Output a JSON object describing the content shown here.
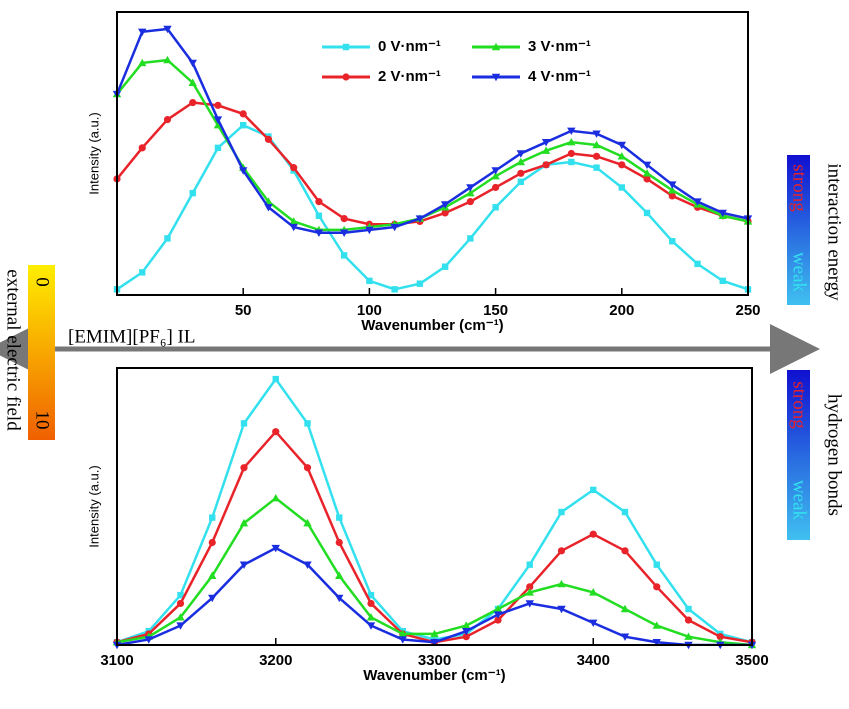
{
  "chart_data": [
    {
      "type": "line",
      "x_label": "Wavenumber (cm⁻¹)",
      "y_label": "Intensity (a.u.)",
      "x": [
        0,
        10,
        20,
        30,
        40,
        50,
        60,
        70,
        80,
        90,
        100,
        110,
        120,
        130,
        140,
        150,
        160,
        170,
        180,
        190,
        200,
        210,
        220,
        230,
        240,
        250
      ],
      "xlim": [
        0,
        250
      ],
      "xticks": [
        50,
        100,
        150,
        200,
        250
      ],
      "ylim": [
        0,
        100
      ],
      "legend": "top",
      "series": [
        {
          "name": "0 V·nm⁻¹",
          "color": "#33e0ee",
          "marker": "square",
          "values": [
            2,
            8,
            20,
            36,
            52,
            60,
            56,
            44,
            28,
            14,
            5,
            2,
            4,
            10,
            20,
            31,
            40,
            46,
            47,
            45,
            38,
            29,
            19,
            11,
            5,
            2
          ]
        },
        {
          "name": "2 V·nm⁻¹",
          "color": "#e8232a",
          "marker": "circle",
          "values": [
            41,
            52,
            62,
            68,
            67,
            64,
            55,
            45,
            33,
            27,
            25,
            25,
            26,
            29,
            33,
            38,
            43,
            46,
            50,
            49,
            46,
            41,
            35,
            31,
            28,
            26
          ]
        },
        {
          "name": "3 V·nm⁻¹",
          "color": "#22dd22",
          "marker": "triangle",
          "values": [
            71,
            82,
            83,
            75,
            60,
            45,
            33,
            26,
            23,
            23,
            24,
            25,
            27,
            31,
            36,
            42,
            47,
            51,
            54,
            53,
            49,
            43,
            37,
            32,
            28,
            26
          ]
        },
        {
          "name": "4 V·nm⁻¹",
          "color": "#1a2ee0",
          "marker": "triangle-down",
          "values": [
            71,
            93,
            94,
            82,
            62,
            44,
            31,
            24,
            22,
            22,
            23,
            24,
            27,
            32,
            38,
            44,
            50,
            54,
            58,
            57,
            53,
            46,
            39,
            33,
            29,
            27
          ]
        }
      ]
    },
    {
      "type": "line",
      "x_label": "Wavenumber (cm⁻¹)",
      "y_label": "Intensity (a.u.)",
      "x": [
        3100,
        3120,
        3140,
        3160,
        3180,
        3200,
        3220,
        3240,
        3260,
        3280,
        3300,
        3320,
        3340,
        3360,
        3380,
        3400,
        3420,
        3440,
        3460,
        3480,
        3500
      ],
      "xlim": [
        3100,
        3500
      ],
      "xticks": [
        3100,
        3200,
        3300,
        3400,
        3500
      ],
      "ylim": [
        0,
        100
      ],
      "series": [
        {
          "color": "#33e0ee",
          "marker": "square",
          "values": [
            1,
            5,
            18,
            46,
            80,
            96,
            80,
            46,
            18,
            5,
            2,
            4,
            13,
            29,
            48,
            56,
            48,
            29,
            13,
            4,
            1
          ]
        },
        {
          "color": "#e8232a",
          "marker": "circle",
          "values": [
            1,
            4,
            15,
            37,
            64,
            77,
            64,
            37,
            15,
            4,
            1,
            3,
            9,
            21,
            34,
            40,
            34,
            21,
            9,
            3,
            1
          ]
        },
        {
          "color": "#22dd22",
          "marker": "triangle",
          "values": [
            1,
            3,
            10,
            25,
            44,
            53,
            44,
            25,
            10,
            4,
            4,
            7,
            13,
            19,
            22,
            19,
            13,
            7,
            3,
            1,
            0
          ]
        },
        {
          "color": "#1a2ee0",
          "marker": "triangle-down",
          "values": [
            0,
            2,
            7,
            17,
            29,
            35,
            29,
            17,
            7,
            2,
            1,
            5,
            11,
            15,
            13,
            8,
            3,
            1,
            0,
            0,
            0
          ]
        }
      ]
    }
  ],
  "annotations": {
    "il_label": "[EMIM][PF₆] IL",
    "field_label": "external electric field",
    "field_min": "0",
    "field_max": "10",
    "energy_label": "interaction energy",
    "energy_strong": "strong",
    "energy_weak": "weak",
    "hbond_label": "hydrogen bonds",
    "hbond_strong": "strong",
    "hbond_weak": "weak"
  }
}
